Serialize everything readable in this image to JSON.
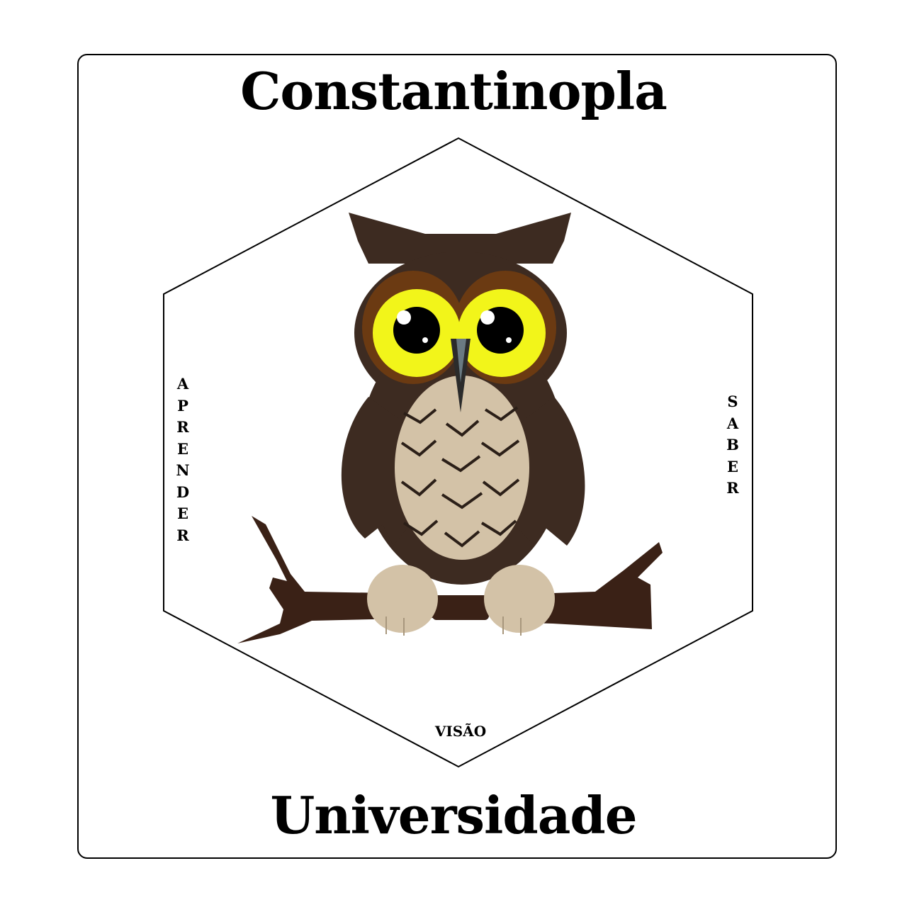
{
  "logo": {
    "title": "Constantinopla",
    "subtitle": "Universidade",
    "left_word": "APRENDER",
    "right_word": "SABER",
    "bottom_word": "VISÃO",
    "emblem_icon": "owl-on-branch-icon"
  },
  "colors": {
    "owl_body": "#3d2b21",
    "owl_belly": "#d3c2a7",
    "eye_ring": "#6b3a12",
    "eye_iris": "#f2f51a",
    "branch": "#3a2116",
    "beak": "#2b2b2b"
  }
}
